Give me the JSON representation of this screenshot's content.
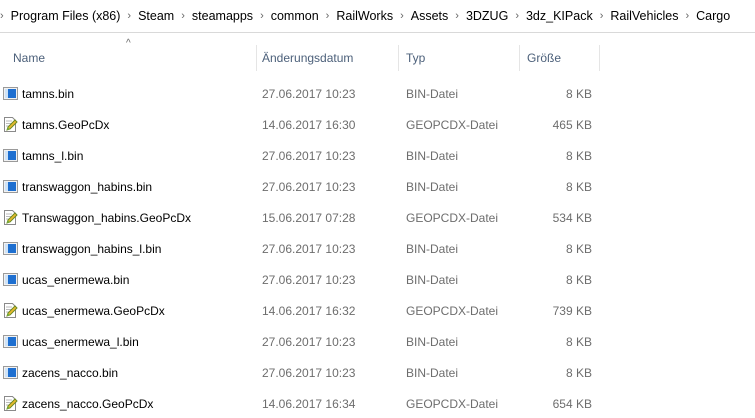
{
  "breadcrumb": [
    "Program Files (x86)",
    "Steam",
    "steamapps",
    "common",
    "RailWorks",
    "Assets",
    "3DZUG",
    "3dz_KIPack",
    "RailVehicles",
    "Cargo"
  ],
  "columns": {
    "name": "Name",
    "date": "Änderungsdatum",
    "type": "Typ",
    "size": "Größe"
  },
  "files": [
    {
      "name": "tamns.bin",
      "date": "27.06.2017 10:23",
      "type": "BIN-Datei",
      "size": "8 KB",
      "icon": "bin-file-icon"
    },
    {
      "name": "tamns.GeoPcDx",
      "date": "14.06.2017 16:30",
      "type": "GEOPCDX-Datei",
      "size": "465 KB",
      "icon": "geopcdx-file-icon"
    },
    {
      "name": "tamns_l.bin",
      "date": "27.06.2017 10:23",
      "type": "BIN-Datei",
      "size": "8 KB",
      "icon": "bin-file-icon"
    },
    {
      "name": "transwaggon_habins.bin",
      "date": "27.06.2017 10:23",
      "type": "BIN-Datei",
      "size": "8 KB",
      "icon": "bin-file-icon"
    },
    {
      "name": "Transwaggon_habins.GeoPcDx",
      "date": "15.06.2017 07:28",
      "type": "GEOPCDX-Datei",
      "size": "534 KB",
      "icon": "geopcdx-file-icon"
    },
    {
      "name": "transwaggon_habins_l.bin",
      "date": "27.06.2017 10:23",
      "type": "BIN-Datei",
      "size": "8 KB",
      "icon": "bin-file-icon"
    },
    {
      "name": "ucas_enermewa.bin",
      "date": "27.06.2017 10:23",
      "type": "BIN-Datei",
      "size": "8 KB",
      "icon": "bin-file-icon"
    },
    {
      "name": "ucas_enermewa.GeoPcDx",
      "date": "14.06.2017 16:32",
      "type": "GEOPCDX-Datei",
      "size": "739 KB",
      "icon": "geopcdx-file-icon"
    },
    {
      "name": "ucas_enermewa_l.bin",
      "date": "27.06.2017 10:23",
      "type": "BIN-Datei",
      "size": "8 KB",
      "icon": "bin-file-icon"
    },
    {
      "name": "zacens_nacco.bin",
      "date": "27.06.2017 10:23",
      "type": "BIN-Datei",
      "size": "8 KB",
      "icon": "bin-file-icon"
    },
    {
      "name": "zacens_nacco.GeoPcDx",
      "date": "14.06.2017 16:34",
      "type": "GEOPCDX-Datei",
      "size": "654 KB",
      "icon": "geopcdx-file-icon"
    }
  ]
}
